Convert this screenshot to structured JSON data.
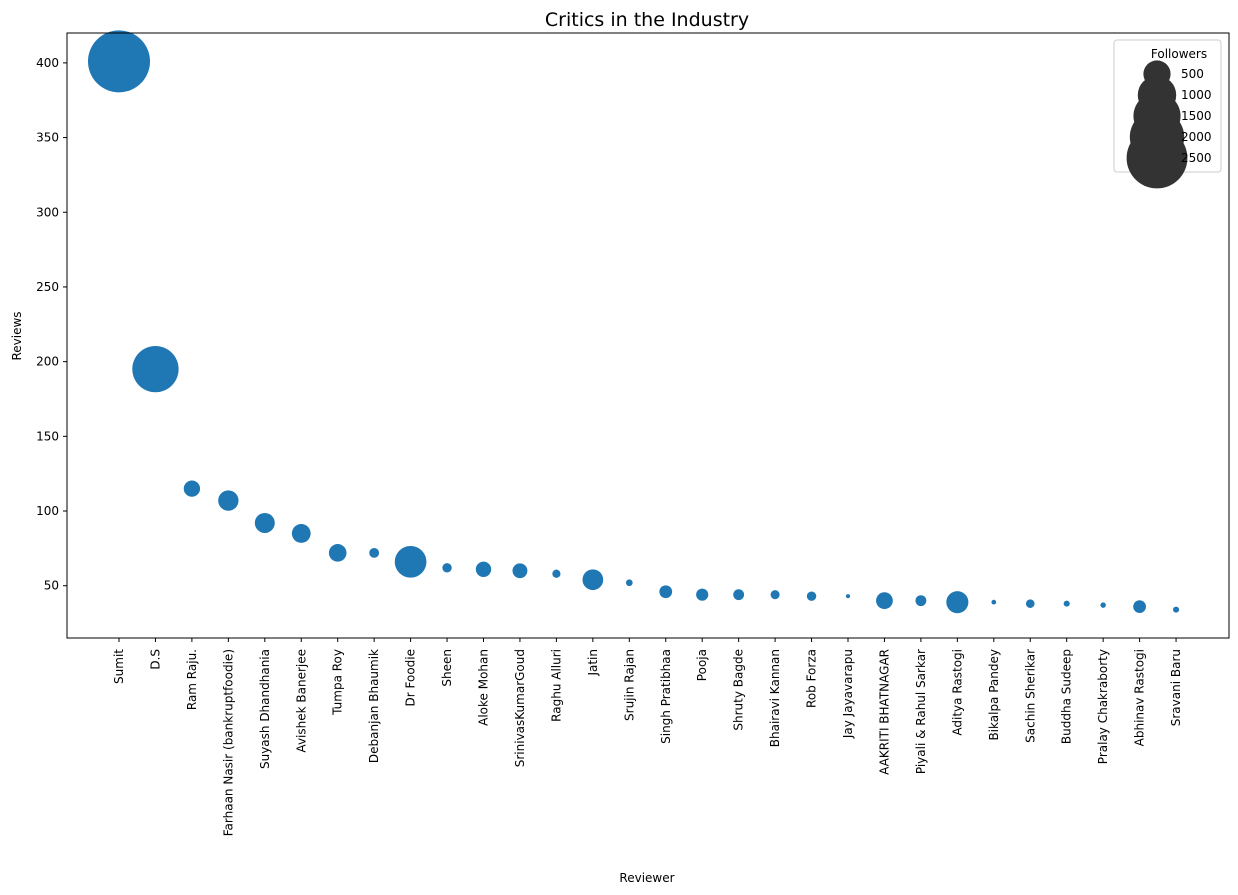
{
  "chart_data": {
    "type": "scatter",
    "title": "Critics in the Industry",
    "xlabel": "Reviewer",
    "ylabel": "Reviews",
    "ylim": [
      15,
      420
    ],
    "yticks": [
      50,
      100,
      150,
      200,
      250,
      300,
      350,
      400
    ],
    "grid": false,
    "color": "#1f77b4",
    "size_variable": "Followers",
    "legend": {
      "title": "Followers",
      "placement": "top-right",
      "entries": [
        {
          "label": "500",
          "value": 500
        },
        {
          "label": "1000",
          "value": 1000
        },
        {
          "label": "1500",
          "value": 1500
        },
        {
          "label": "2000",
          "value": 2000
        },
        {
          "label": "2500",
          "value": 2500
        }
      ],
      "color": "#333333"
    },
    "points": [
      {
        "x": "Sumit",
        "reviews": 401,
        "followers": 2600
      },
      {
        "x": "D.S",
        "reviews": 195,
        "followers": 1450
      },
      {
        "x": "Ram Raju.",
        "reviews": 115,
        "followers": 180
      },
      {
        "x": "Farhaan Nasir (bankruptfoodie)",
        "reviews": 107,
        "followers": 280
      },
      {
        "x": "Suyash Dhandhania",
        "reviews": 92,
        "followers": 270
      },
      {
        "x": "Avishek Banerjee",
        "reviews": 85,
        "followers": 240
      },
      {
        "x": "Tumpa Roy",
        "reviews": 72,
        "followers": 210
      },
      {
        "x": "Debanjan Bhaumik",
        "reviews": 72,
        "followers": 65
      },
      {
        "x": "Dr Foodie",
        "reviews": 66,
        "followers": 680
      },
      {
        "x": "Sheen",
        "reviews": 62,
        "followers": 60
      },
      {
        "x": "Aloke Mohan",
        "reviews": 61,
        "followers": 160
      },
      {
        "x": "SrinivasKumarGoud",
        "reviews": 60,
        "followers": 150
      },
      {
        "x": "Raghu Alluri",
        "reviews": 58,
        "followers": 45
      },
      {
        "x": "Jatin",
        "reviews": 54,
        "followers": 290
      },
      {
        "x": "Srujin Rajan",
        "reviews": 52,
        "followers": 30
      },
      {
        "x": "Singh Pratibhaa",
        "reviews": 46,
        "followers": 110
      },
      {
        "x": "Pooja",
        "reviews": 44,
        "followers": 100
      },
      {
        "x": "Shruty Bagde",
        "reviews": 44,
        "followers": 80
      },
      {
        "x": "Bhairavi Kannan",
        "reviews": 44,
        "followers": 55
      },
      {
        "x": "Rob Forza",
        "reviews": 43,
        "followers": 60
      },
      {
        "x": "Jay Jayavarapu",
        "reviews": 43,
        "followers": 12
      },
      {
        "x": "AAKRITI BHATNAGAR",
        "reviews": 40,
        "followers": 190
      },
      {
        "x": "Piyali & Rahul Sarkar",
        "reviews": 40,
        "followers": 80
      },
      {
        "x": "Aditya Rastogi",
        "reviews": 39,
        "followers": 330
      },
      {
        "x": "Bikalpa Pandey",
        "reviews": 39,
        "followers": 15
      },
      {
        "x": "Sachin Sherikar",
        "reviews": 38,
        "followers": 50
      },
      {
        "x": "Buddha Sudeep",
        "reviews": 38,
        "followers": 25
      },
      {
        "x": "Pralay Chakraborty",
        "reviews": 37,
        "followers": 20
      },
      {
        "x": "Abhinav Rastogi",
        "reviews": 36,
        "followers": 110
      },
      {
        "x": "Sravani Baru",
        "reviews": 34,
        "followers": 25
      }
    ]
  }
}
